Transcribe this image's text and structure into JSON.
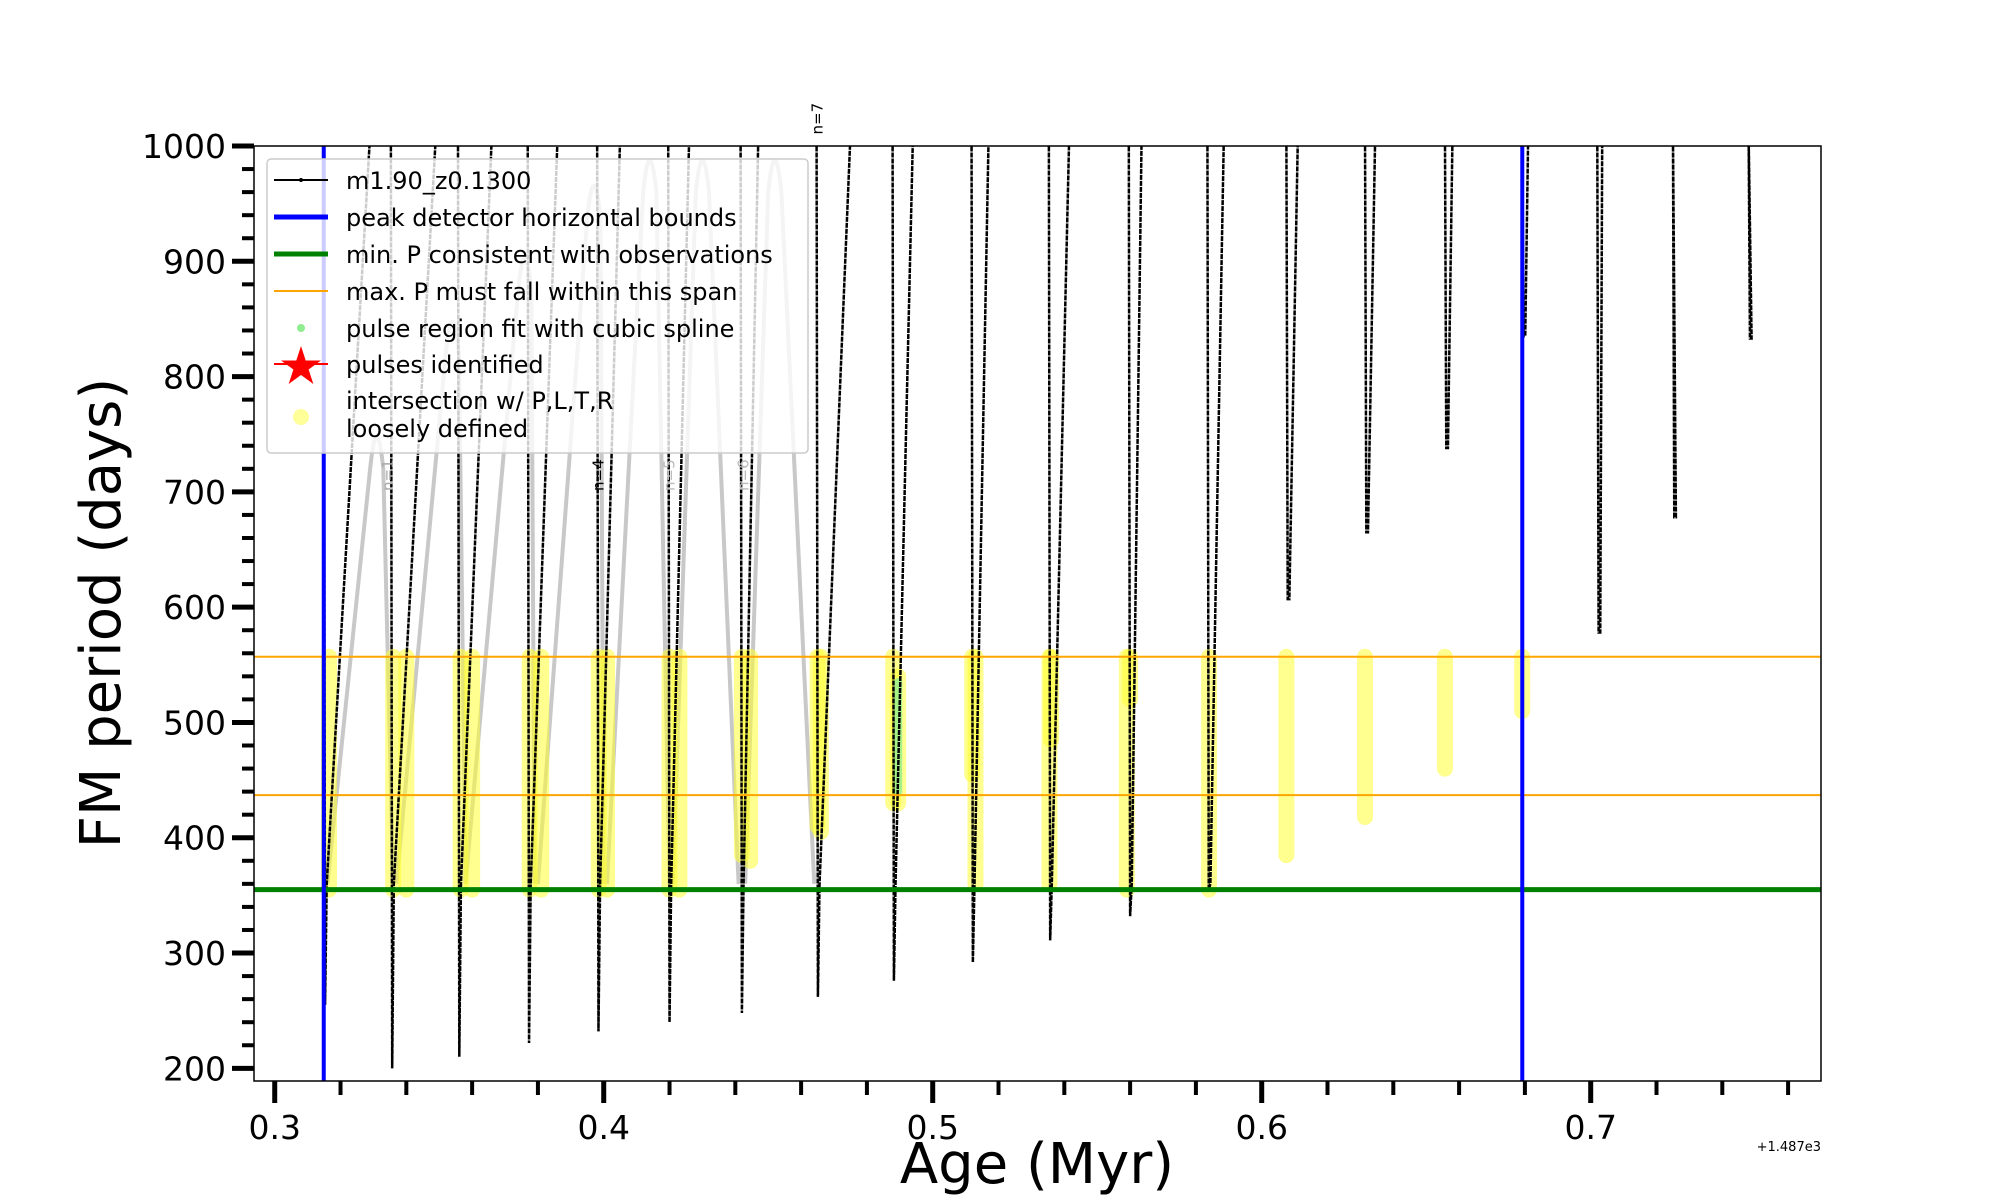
{
  "chart_data": {
    "type": "line",
    "xlabel": "Age (Myr)",
    "ylabel": "FM period (days)",
    "x_offset_text": "+1.487e3",
    "xlim": [
      0.2937,
      0.77
    ],
    "ylim": [
      189,
      1000
    ],
    "xticks": [
      0.3,
      0.4,
      0.5,
      0.6,
      0.7
    ],
    "xtick_labels": [
      "0.3",
      "0.4",
      "0.5",
      "0.6",
      "0.7"
    ],
    "yticks": [
      200,
      300,
      400,
      500,
      600,
      700,
      800,
      900,
      1000
    ],
    "ytick_labels": [
      "200",
      "300",
      "400",
      "500",
      "600",
      "700",
      "800",
      "900",
      "1000"
    ],
    "grid": false,
    "legend_placement": "upper-left",
    "legend": [
      {
        "label": "m1.90_z0.1300",
        "kind": "line-marker",
        "color": "#000000"
      },
      {
        "label": "peak detector horizontal bounds",
        "kind": "line",
        "color": "#0000ff"
      },
      {
        "label": "min. P consistent with observations",
        "kind": "line",
        "color": "#008000"
      },
      {
        "label": "max. P must fall within this span",
        "kind": "thin-line",
        "color": "#ffa500"
      },
      {
        "label": "pulse region fit with cubic spline",
        "kind": "dot",
        "color": "#90ee90"
      },
      {
        "label": "pulses identified",
        "kind": "star",
        "color": "#ff0000"
      },
      {
        "label": "intersection w/ P,L,T,R",
        "label2": "loosely defined",
        "kind": "big-dot",
        "color": "#ffff99"
      }
    ],
    "vertical_bounds": [
      0.3149,
      0.6792
    ],
    "min_period": 355,
    "max_period_span": [
      437,
      557
    ],
    "track_pulses": {
      "columns": [
        "age",
        "min_period",
        "age_at_1000"
      ],
      "rows": [
        [
          0.3149,
          255,
          0.329
        ],
        [
          0.3353,
          200,
          0.349
        ],
        [
          0.3557,
          210,
          0.366
        ],
        [
          0.3769,
          222,
          0.386
        ],
        [
          0.398,
          232,
          0.405
        ],
        [
          0.4196,
          240,
          0.426
        ],
        [
          0.4416,
          248,
          0.447
        ],
        [
          0.4647,
          262,
          0.475
        ],
        [
          0.4878,
          276,
          0.494
        ],
        [
          0.5118,
          292,
          0.517
        ],
        [
          0.5353,
          311,
          0.5415
        ],
        [
          0.5596,
          332,
          0.5635
        ],
        [
          0.5835,
          355,
          0.5885
        ],
        [
          0.6075,
          607,
          0.611
        ],
        [
          0.6314,
          665,
          0.6345
        ],
        [
          0.6557,
          738,
          0.658
        ],
        [
          0.6792,
          835,
          0.681
        ],
        [
          0.702,
          578,
          0.7035
        ],
        [
          0.725,
          678,
          0.725
        ],
        [
          0.748,
          833,
          0.748
        ]
      ]
    },
    "comparison_track_gray": {
      "columns": [
        "start_age",
        "peak_age",
        "peak_period",
        "end_age"
      ],
      "rows": [
        [
          0.316,
          0.331,
          760,
          0.336
        ],
        [
          0.337,
          0.354,
          860,
          0.358
        ],
        [
          0.358,
          0.376,
          915,
          0.379
        ],
        [
          0.38,
          0.397,
          978,
          0.4
        ],
        [
          0.401,
          0.414,
          1000,
          0.42
        ],
        [
          0.421,
          0.43,
          1000,
          0.441
        ],
        [
          0.443,
          0.452,
          1000,
          0.464
        ]
      ]
    },
    "loosely_defined_regions": {
      "columns": [
        "age",
        "low_period",
        "high_period"
      ],
      "rows": [
        [
          0.3165,
          355,
          557
        ],
        [
          0.336,
          355,
          557
        ],
        [
          0.34,
          355,
          557
        ],
        [
          0.3565,
          355,
          557
        ],
        [
          0.36,
          355,
          557
        ],
        [
          0.3775,
          355,
          557
        ],
        [
          0.381,
          355,
          557
        ],
        [
          0.3985,
          355,
          557
        ],
        [
          0.401,
          355,
          557
        ],
        [
          0.42,
          355,
          557
        ],
        [
          0.423,
          355,
          557
        ],
        [
          0.442,
          385,
          557
        ],
        [
          0.4445,
          380,
          557
        ],
        [
          0.465,
          410,
          557
        ],
        [
          0.466,
          405,
          557
        ],
        [
          0.488,
          430,
          557
        ],
        [
          0.4895,
          430,
          540
        ],
        [
          0.512,
          455,
          557
        ],
        [
          0.513,
          360,
          557
        ],
        [
          0.536,
          485,
          557
        ],
        [
          0.5355,
          360,
          557
        ],
        [
          0.56,
          520,
          557
        ],
        [
          0.559,
          355,
          557
        ],
        [
          0.584,
          355,
          557
        ],
        [
          0.6075,
          385,
          557
        ],
        [
          0.6314,
          418,
          557
        ],
        [
          0.6557,
          460,
          557
        ],
        [
          0.6792,
          510,
          557
        ]
      ]
    },
    "spline_fit_region": {
      "age": 0.4895,
      "low_period": 440,
      "high_period": 535
    },
    "annotations": [
      {
        "text": "n=1",
        "x": 0.336,
        "y": 730,
        "color": "#aaaaaa"
      },
      {
        "text": "n=4",
        "x": 0.4,
        "y": 715,
        "color": "#000000"
      },
      {
        "text": "n=5",
        "x": 0.4215,
        "y": 770,
        "color": "#bbbbbb"
      },
      {
        "text": "n=6",
        "x": 0.444,
        "y": 870,
        "color": "#bbbbbb"
      },
      {
        "text": "n=7",
        "x": 0.4665,
        "y": 1010,
        "color": "#000000"
      }
    ]
  }
}
